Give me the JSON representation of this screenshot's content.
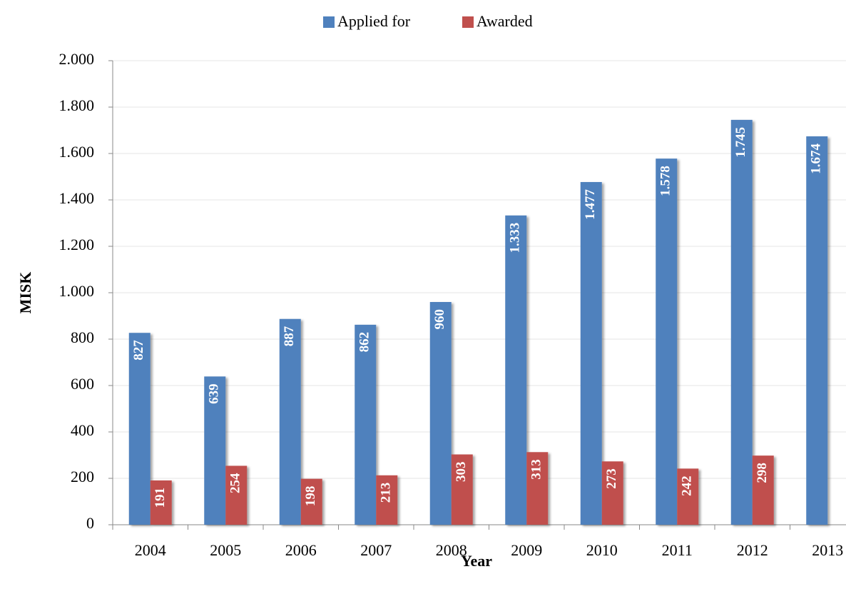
{
  "chart_data": {
    "type": "bar",
    "x_label": "Year",
    "y_label": "MISK",
    "categories": [
      "2004",
      "2005",
      "2006",
      "2007",
      "2008",
      "2009",
      "2010",
      "2011",
      "2012",
      "2013"
    ],
    "series": [
      {
        "name": "Applied for",
        "color": "#4f81bd",
        "values": [
          827,
          639,
          887,
          862,
          960,
          1333,
          1477,
          1578,
          1745,
          1674
        ],
        "value_labels": [
          "827",
          "639",
          "887",
          "862",
          "960",
          "1.333",
          "1.477",
          "1.578",
          "1.745",
          "1.674"
        ]
      },
      {
        "name": "Awarded",
        "color": "#c0504d",
        "values": [
          191,
          254,
          198,
          213,
          303,
          313,
          273,
          242,
          298,
          null
        ],
        "value_labels": [
          "191",
          "254",
          "198",
          "213",
          "303",
          "313",
          "273",
          "242",
          "298",
          null
        ]
      }
    ],
    "ylim": [
      0,
      2000
    ],
    "yticks": [
      0,
      200,
      400,
      600,
      800,
      {
        "value": 1000,
        "label": "1.000"
      },
      {
        "value": 1200,
        "label": "1.200"
      },
      {
        "value": 1400,
        "label": "1.400"
      },
      {
        "value": 1600,
        "label": "1.600"
      },
      {
        "value": 1800,
        "label": "1.800"
      },
      {
        "value": 2000,
        "label": "2.000"
      }
    ],
    "grid": true,
    "legend": "top"
  }
}
